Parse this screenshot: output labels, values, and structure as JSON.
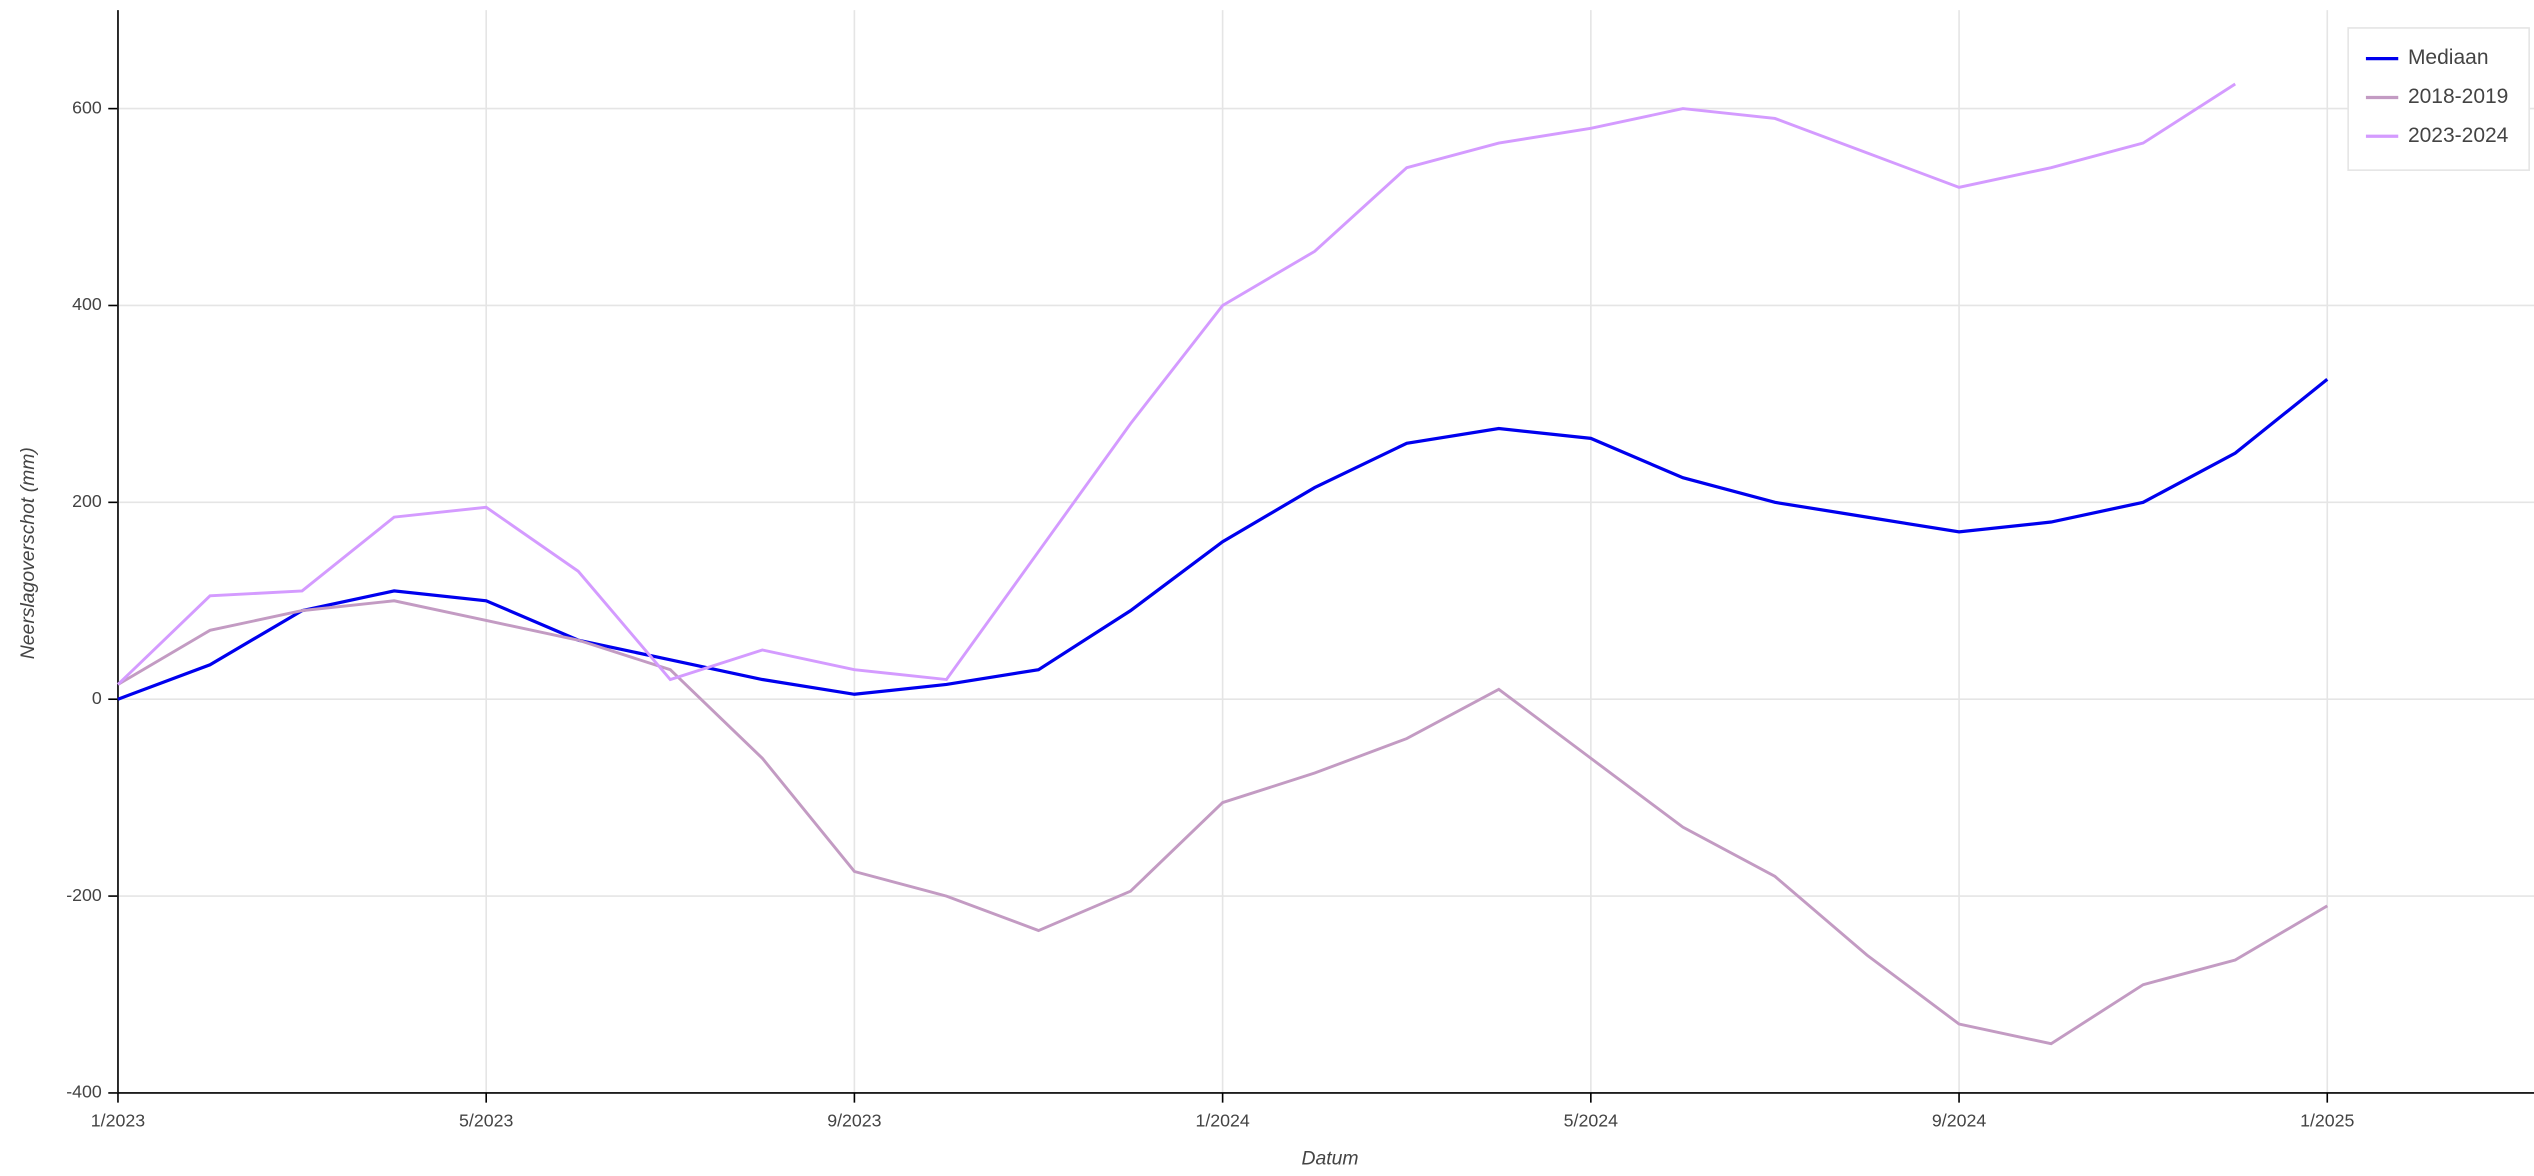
{
  "chart_data": {
    "type": "line",
    "x_label": "Datum",
    "y_label": "Neerslagoverschot (mm)",
    "x": [
      "2023-01",
      "2023-02",
      "2023-03",
      "2023-04",
      "2023-05",
      "2023-06",
      "2023-07",
      "2023-08",
      "2023-09",
      "2023-10",
      "2023-11",
      "2023-12",
      "2024-01",
      "2024-02",
      "2024-03",
      "2024-04",
      "2024-05",
      "2024-06",
      "2024-07",
      "2024-08",
      "2024-09",
      "2024-10",
      "2024-11",
      "2024-12",
      "2025-01"
    ],
    "series": [
      {
        "name": "Mediaan",
        "color": "#0000ee",
        "values": [
          0,
          35,
          90,
          110,
          100,
          60,
          40,
          20,
          5,
          15,
          30,
          90,
          160,
          215,
          260,
          275,
          265,
          225,
          200,
          185,
          170,
          180,
          200,
          250,
          325
        ]
      },
      {
        "name": "2018-2019",
        "color": "#c39bc3",
        "values": [
          15,
          70,
          90,
          100,
          80,
          60,
          30,
          -60,
          -175,
          -200,
          -235,
          -195,
          -105,
          -75,
          -40,
          10,
          -60,
          -130,
          -180,
          -260,
          -330,
          -350,
          -290,
          -265,
          -210
        ]
      },
      {
        "name": "2023-2024",
        "color": "#d49bff",
        "values": [
          15,
          105,
          110,
          185,
          195,
          130,
          20,
          50,
          30,
          20,
          150,
          280,
          400,
          455,
          540,
          565,
          580,
          600,
          590,
          555,
          520,
          540,
          565,
          625,
          null
        ]
      }
    ],
    "xlim": [
      "2023-01",
      "2025-03"
    ],
    "xticks": [
      {
        "value": "2023-01",
        "label": "1/2023"
      },
      {
        "value": "2023-05",
        "label": "5/2023"
      },
      {
        "value": "2023-09",
        "label": "9/2023"
      },
      {
        "value": "2024-01",
        "label": "1/2024"
      },
      {
        "value": "2024-05",
        "label": "5/2024"
      },
      {
        "value": "2024-09",
        "label": "9/2024"
      },
      {
        "value": "2025-01",
        "label": "1/2025"
      }
    ],
    "ylim": [
      -400,
      700
    ],
    "yticks": [
      -400,
      -200,
      0,
      200,
      400,
      600
    ],
    "grid": true,
    "legend": "top_right"
  }
}
